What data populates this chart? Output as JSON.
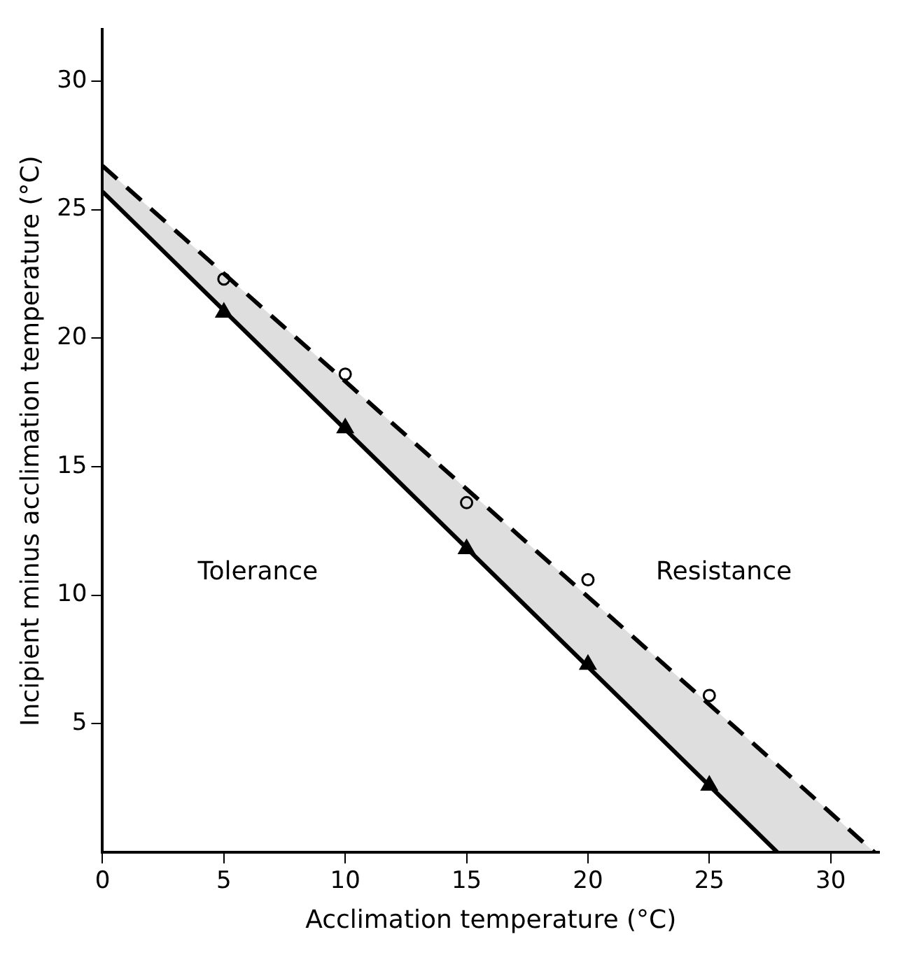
{
  "chart_data": {
    "type": "line",
    "xlabel": "Acclimation temperature (°C)",
    "ylabel": "Incipient minus acclimation temperature (°C)",
    "xlim": [
      0,
      32
    ],
    "xticks": [
      0,
      5,
      10,
      15,
      20,
      25,
      30
    ],
    "ylim": [
      0,
      32
    ],
    "yticks": [
      5,
      10,
      15,
      20,
      25,
      30
    ],
    "grid": false,
    "legend": false,
    "annotations": [
      "Tolerance",
      "Resistance"
    ],
    "series": [
      {
        "color": "#000000",
        "marker": "none",
        "line_style": "solid",
        "x": [
          0,
          27.8
        ],
        "values": [
          25.7,
          0
        ]
      },
      {
        "color": "#000000",
        "marker": "none",
        "line_style": "dashed",
        "x": [
          0,
          27.8,
          31.8
        ],
        "values": [
          26.7,
          3.4,
          0
        ],
        "lower": [
          25.7,
          0,
          0
        ],
        "upper": [
          26.7,
          3.4,
          0
        ]
      },
      {
        "type": "scatter",
        "color": "#000000",
        "marker": "triangle",
        "x": [
          5,
          10,
          15,
          20,
          25
        ],
        "values": [
          21,
          16.5,
          11.8,
          7.3,
          2.6
        ]
      },
      {
        "type": "scatter",
        "color": "#000000",
        "marker": "circle",
        "x": [
          5,
          10,
          15,
          20,
          25
        ],
        "values": [
          22.3,
          18.6,
          13.6,
          10.6,
          6.1
        ]
      }
    ]
  }
}
